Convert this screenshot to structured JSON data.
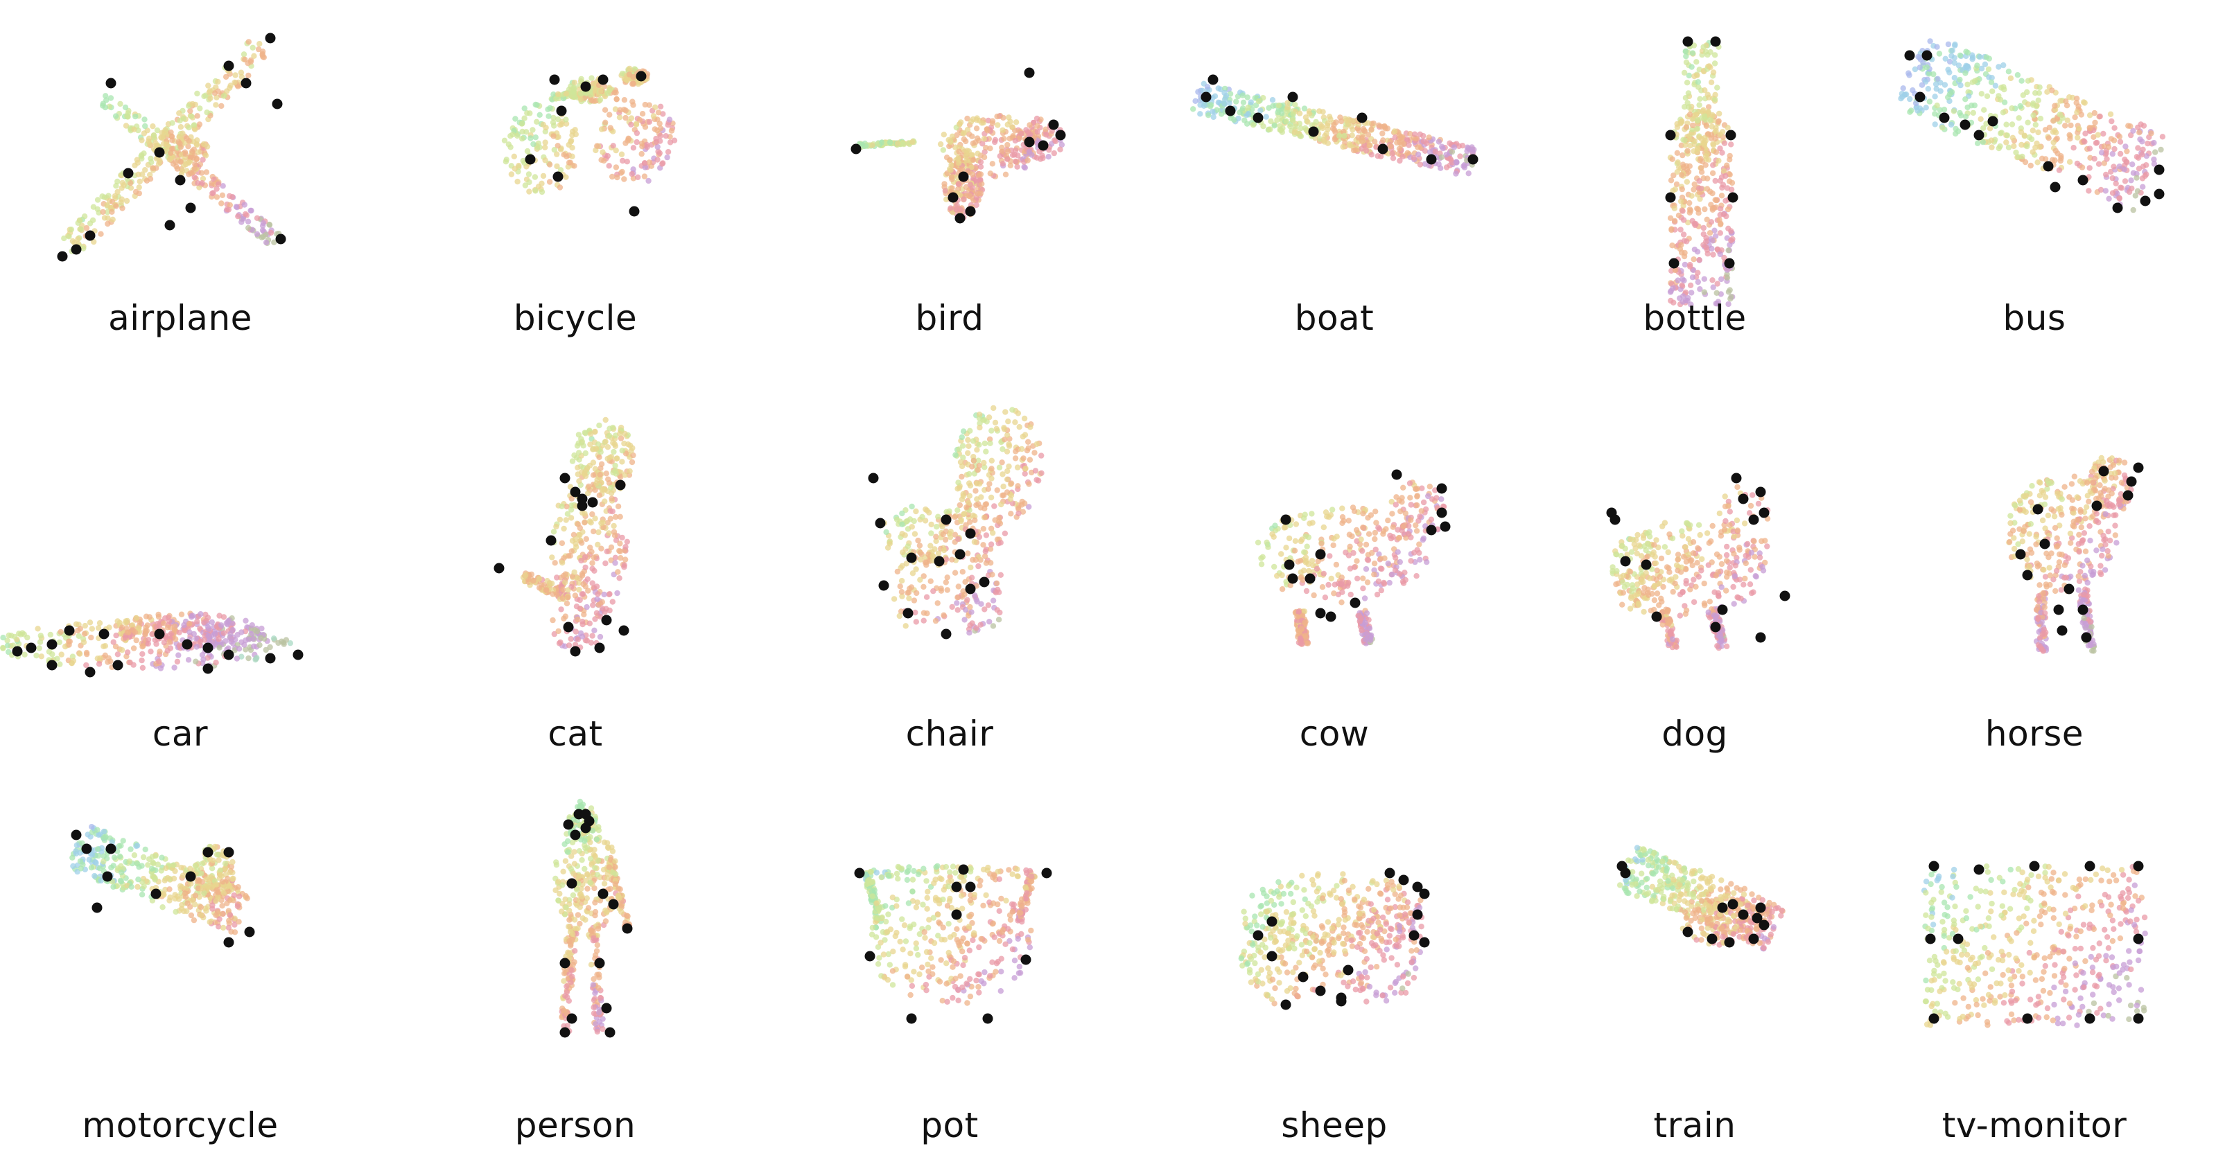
{
  "figure": {
    "point_colors": [
      "#e2a9d6",
      "#c9a8e8",
      "#a9b8ec",
      "#9fd0e8",
      "#a8e6b0",
      "#cfe59a",
      "#e8d58f",
      "#efb38a",
      "#e99aa7",
      "#c79ed6",
      "#b9c2a0",
      "#a9d9c4"
    ],
    "keypoint_color": "#111111",
    "categories": [
      {
        "label": "airplane",
        "icon": "airplane-silhouette"
      },
      {
        "label": "bicycle",
        "icon": "bicycle-silhouette"
      },
      {
        "label": "bird",
        "icon": "bird-silhouette"
      },
      {
        "label": "boat",
        "icon": "boat-silhouette"
      },
      {
        "label": "bottle",
        "icon": "bottle-silhouette"
      },
      {
        "label": "bus",
        "icon": "bus-silhouette"
      },
      {
        "label": "car",
        "icon": "car-silhouette"
      },
      {
        "label": "cat",
        "icon": "cat-silhouette"
      },
      {
        "label": "chair",
        "icon": "chair-silhouette"
      },
      {
        "label": "cow",
        "icon": "cow-silhouette"
      },
      {
        "label": "dog",
        "icon": "dog-silhouette"
      },
      {
        "label": "horse",
        "icon": "horse-silhouette"
      },
      {
        "label": "motorcycle",
        "icon": "motorcycle-silhouette"
      },
      {
        "label": "person",
        "icon": "person-silhouette"
      },
      {
        "label": "pot",
        "icon": "pot-silhouette"
      },
      {
        "label": "sheep",
        "icon": "sheep-silhouette"
      },
      {
        "label": "train",
        "icon": "train-silhouette"
      },
      {
        "label": "tv-monitor",
        "icon": "tv-monitor-silhouette"
      }
    ]
  }
}
